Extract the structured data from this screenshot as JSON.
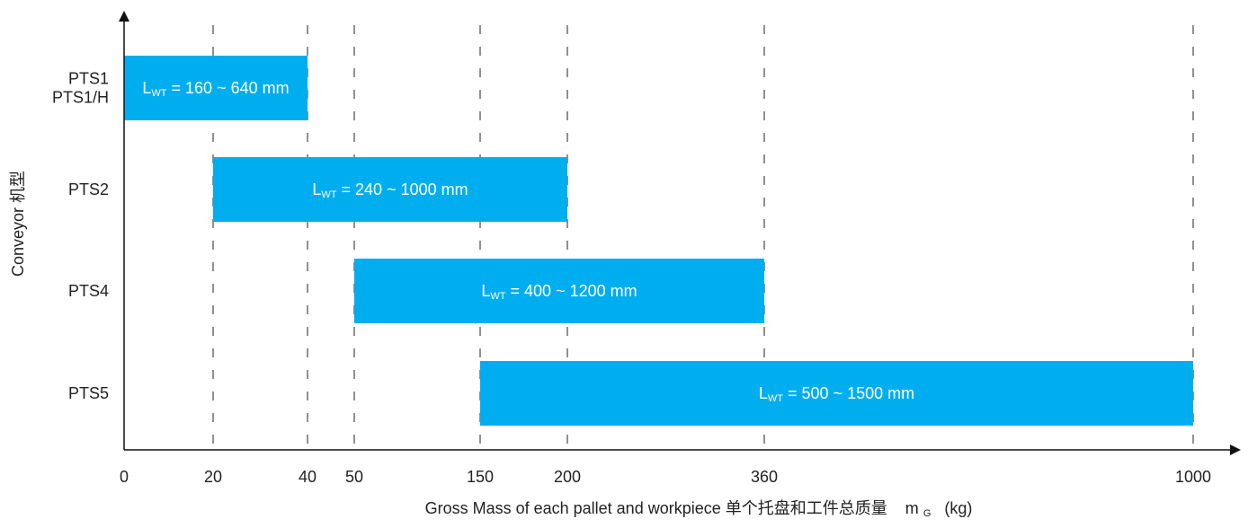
{
  "chart_data": {
    "type": "bar",
    "orientation": "horizontal-range",
    "xlabel": {
      "text": "Gross Mass of each pallet and workpiece 单个托盘和工件总质量",
      "symbol_main": "m",
      "symbol_sub": "G",
      "unit": "(kg)"
    },
    "ylabel": {
      "text": "Conveyor 机型"
    },
    "x_ticks": [
      {
        "value": 0,
        "label": "0"
      },
      {
        "value": 20,
        "label": "20"
      },
      {
        "value": 40,
        "label": "40"
      },
      {
        "value": 50,
        "label": "50"
      },
      {
        "value": 150,
        "label": "150"
      },
      {
        "value": 200,
        "label": "200"
      },
      {
        "value": 360,
        "label": "360"
      },
      {
        "value": 1000,
        "label": "1000"
      }
    ],
    "gridlines": [
      20,
      40,
      50,
      150,
      200,
      360,
      1000
    ],
    "bar_color": "#00aeef",
    "series": [
      {
        "category": "PTS1\nPTS1/H",
        "category_lines": [
          "PTS1",
          "PTS1/H"
        ],
        "start": 0,
        "end": 40,
        "label_main": "L",
        "label_sub": "WT",
        "label_rest": " = 160 ~ 640 mm"
      },
      {
        "category": "PTS2",
        "category_lines": [
          "PTS2"
        ],
        "start": 20,
        "end": 200,
        "label_main": "L",
        "label_sub": "WT",
        "label_rest": " = 240 ~ 1000 mm"
      },
      {
        "category": "PTS4",
        "category_lines": [
          "PTS4"
        ],
        "start": 50,
        "end": 360,
        "label_main": "L",
        "label_sub": "WT",
        "label_rest": " = 400 ~ 1200 mm"
      },
      {
        "category": "PTS5",
        "category_lines": [
          "PTS5"
        ],
        "start": 150,
        "end": 1000,
        "label_main": "L",
        "label_sub": "WT",
        "label_rest": " = 500 ~ 1500 mm"
      }
    ]
  }
}
